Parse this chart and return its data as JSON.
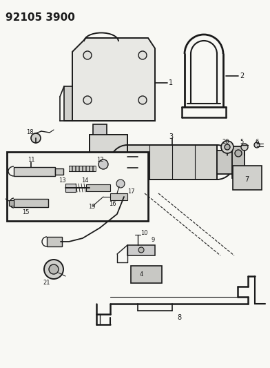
{
  "title": "92105 3900",
  "bg": "#f5f5f0",
  "fg": "#1a1a1a",
  "fig_w": 3.92,
  "fig_h": 5.33,
  "dpi": 100
}
